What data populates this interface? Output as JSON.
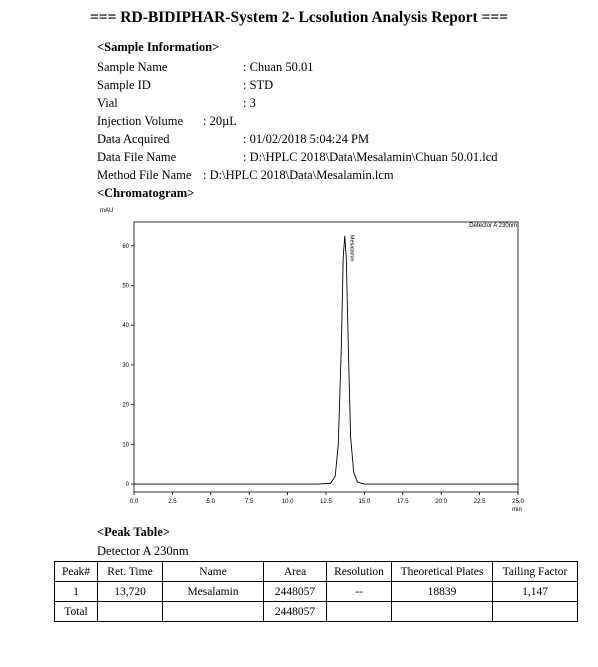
{
  "report_title": "=== RD-BIDIPHAR-System 2- Lcsolution Analysis Report ===",
  "sample_info": {
    "heading": "<Sample Information>",
    "rows": [
      {
        "label": "Sample Name",
        "value": ": Chuan 50.01"
      },
      {
        "label": "Sample ID",
        "value": ": STD"
      },
      {
        "label": "Vial",
        "value": ": 3"
      },
      {
        "label": "Injection Volume",
        "value": ": 20µL"
      },
      {
        "label": "Data Acquired",
        "value": ": 01/02/2018 5:04:24 PM"
      },
      {
        "label": "Data File Name",
        "value": ": D:\\HPLC 2018\\Data\\Mesalamin\\Chuan 50.01.lcd"
      },
      {
        "label": "Method File Name",
        "value": ": D:\\HPLC 2018\\Data\\Mesalamin.lcm"
      }
    ]
  },
  "chromatogram_heading": "<Chromatogram>",
  "chart_data": {
    "type": "line",
    "ylabel": "mAU",
    "xlabel": "min",
    "detector_label": "Detector A 230nm",
    "xlim": [
      0,
      25
    ],
    "ylim": [
      -2,
      66
    ],
    "x_ticks": [
      "0.0",
      "2.5",
      "5.0",
      "7.5",
      "10.0",
      "12.5",
      "15.0",
      "17.5",
      "20.0",
      "22.5",
      "25.0"
    ],
    "y_ticks": [
      "0",
      "10",
      "20",
      "30",
      "40",
      "50",
      "60"
    ],
    "peak_label": "Mesalamin",
    "series": [
      {
        "x": [
          0,
          2,
          4,
          6,
          8,
          10,
          12,
          12.8,
          13.1,
          13.3,
          13.5,
          13.62,
          13.72,
          13.82,
          13.95,
          14.1,
          14.3,
          14.55,
          15,
          17,
          20,
          25
        ],
        "y": [
          0,
          0,
          0,
          0,
          0,
          0,
          0,
          0.2,
          2,
          10,
          35,
          57,
          62.5,
          57,
          35,
          12,
          3,
          0.5,
          0,
          0,
          0,
          0
        ]
      }
    ]
  },
  "peak_table": {
    "heading": "<Peak Table>",
    "detector": "Detector A 230nm",
    "columns": [
      "Peak#",
      "Ret. Time",
      "Name",
      "Area",
      "Resolution",
      "Theoretical Plates",
      "Tailing Factor"
    ],
    "rows": [
      [
        "1",
        "13,720",
        "Mesalamin",
        "2448057",
        "--",
        "18839",
        "1,147"
      ],
      [
        "Total",
        "",
        "",
        "2448057",
        "",
        "",
        ""
      ]
    ]
  }
}
